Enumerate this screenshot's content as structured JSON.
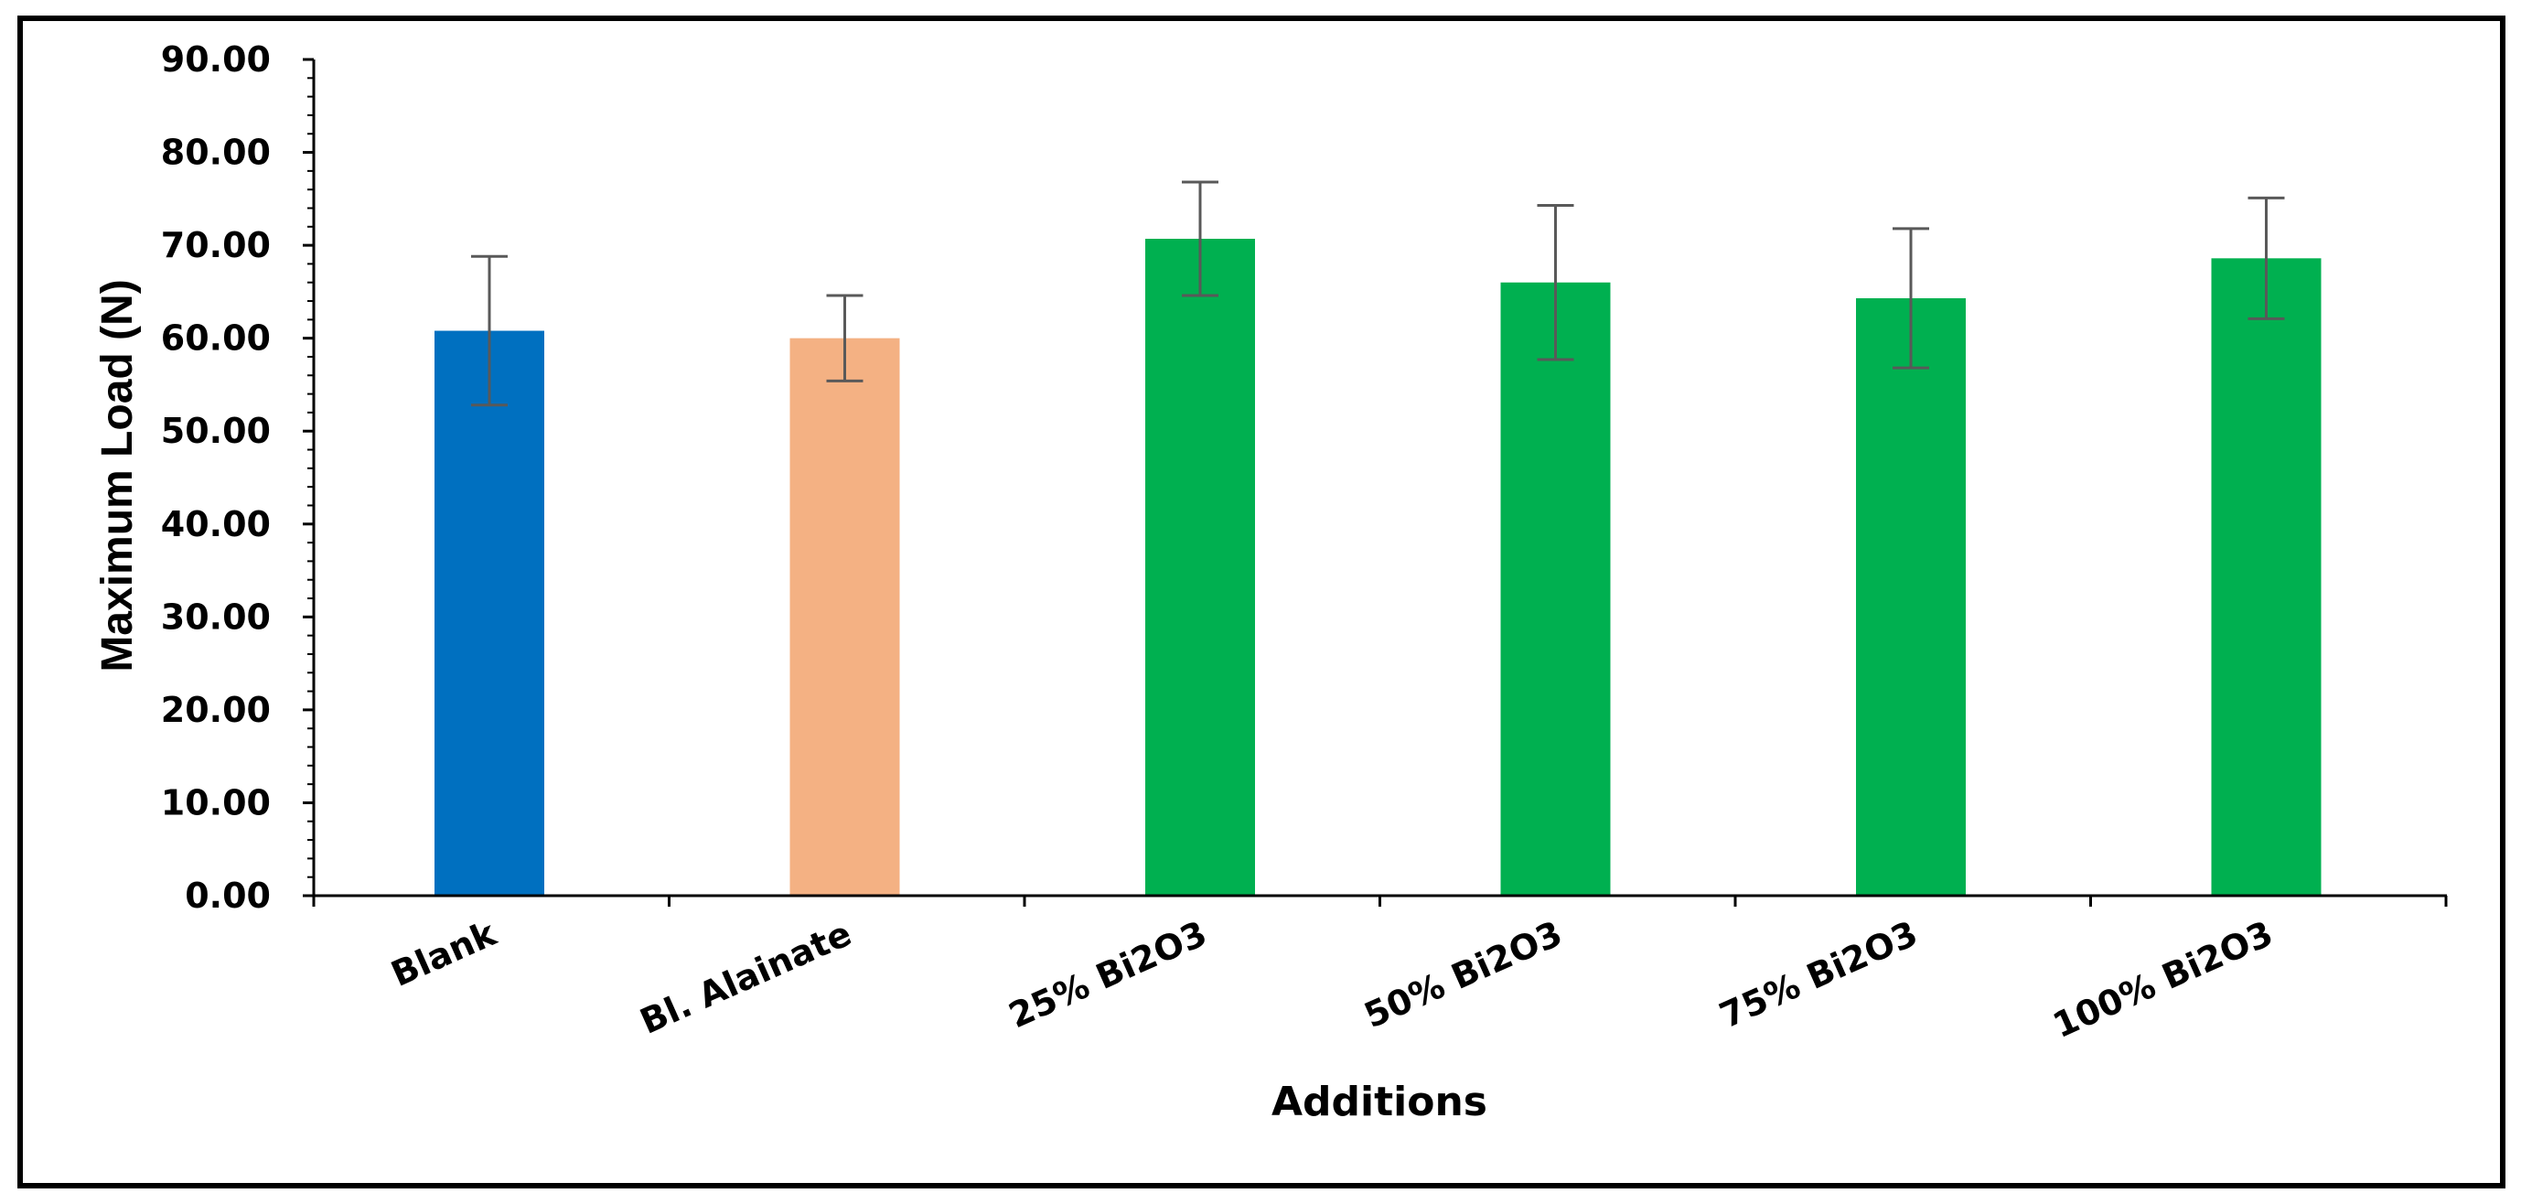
{
  "chart_data": {
    "type": "bar",
    "title": "",
    "xlabel": "Additions",
    "ylabel": "Maximum Load (N)",
    "ylim": [
      0,
      90
    ],
    "y_ticks": [
      "0.00",
      "10.00",
      "20.00",
      "30.00",
      "40.00",
      "50.00",
      "60.00",
      "70.00",
      "80.00",
      "90.00"
    ],
    "grid": false,
    "legend": "none",
    "categories": [
      "Blank",
      "Bl. Alainate",
      "25% Bi2O3",
      "50% Bi2O3",
      "75% Bi2O3",
      "100% Bi2O3"
    ],
    "values": [
      60.8,
      60.0,
      70.7,
      66.0,
      64.3,
      68.6
    ],
    "error": [
      8.0,
      4.6,
      6.1,
      8.3,
      7.5,
      6.5
    ],
    "bar_colors": [
      "#0070C0",
      "#F4B183",
      "#00B050",
      "#00B050",
      "#00B050",
      "#00B050"
    ],
    "error_bar_color": "#595959",
    "axis_color": "#000000",
    "frame_color": "#000000"
  }
}
